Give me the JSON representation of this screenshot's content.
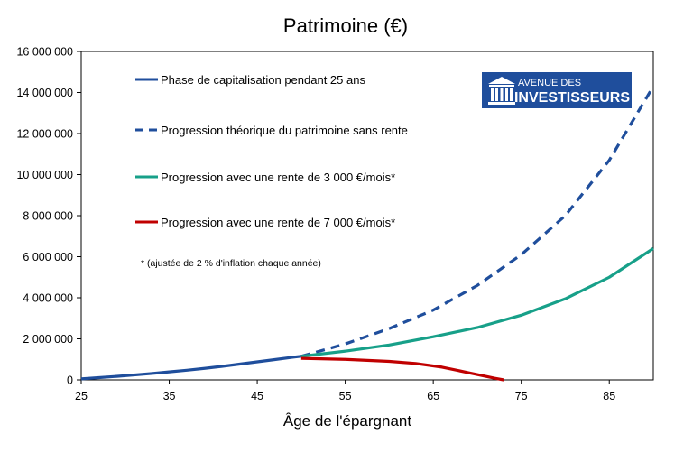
{
  "chart_data": {
    "type": "line",
    "title": "Patrimoine (€)",
    "xlabel": "Âge de l'épargnant",
    "ylabel": "",
    "xlim": [
      25,
      90
    ],
    "ylim": [
      0,
      16000000
    ],
    "x_ticks": [
      25,
      35,
      45,
      55,
      65,
      75,
      85
    ],
    "y_ticks": [
      0,
      2000000,
      4000000,
      6000000,
      8000000,
      10000000,
      12000000,
      14000000,
      16000000
    ],
    "y_tick_labels": [
      "0",
      "2 000 000",
      "4 000 000",
      "6 000 000",
      "8 000 000",
      "10 000 000",
      "12 000 000",
      "14 000 000",
      "16 000 000"
    ],
    "x_tick_labels": [
      "25",
      "35",
      "45",
      "55",
      "65",
      "75",
      "85"
    ],
    "grid": false,
    "legend_position": "top-left",
    "series": [
      {
        "name": "Phase de capitalisation pendant 25 ans",
        "color": "#1f4e9c",
        "style": "solid",
        "x": [
          25,
          27,
          29,
          31,
          33,
          35,
          37,
          39,
          41,
          43,
          45,
          47,
          49,
          50
        ],
        "values": [
          50000,
          110000,
          170000,
          240000,
          310000,
          390000,
          470000,
          560000,
          660000,
          770000,
          880000,
          990000,
          1100000,
          1150000
        ]
      },
      {
        "name": "Progression théorique du patrimoine sans rente",
        "color": "#1f4e9c",
        "style": "dashed",
        "x": [
          50,
          55,
          60,
          65,
          70,
          75,
          80,
          85,
          90
        ],
        "values": [
          1150000,
          1750000,
          2500000,
          3400000,
          4600000,
          6100000,
          8000000,
          10700000,
          14300000
        ]
      },
      {
        "name": "Progression avec une rente de 3 000 €/mois*",
        "color": "#17a089",
        "style": "solid",
        "x": [
          50,
          55,
          60,
          65,
          70,
          75,
          80,
          85,
          90
        ],
        "values": [
          1150000,
          1400000,
          1700000,
          2100000,
          2550000,
          3150000,
          3950000,
          5000000,
          6400000
        ]
      },
      {
        "name": "Progression avec une rente de 7 000 €/mois*",
        "color": "#c00000",
        "style": "solid",
        "x": [
          50,
          55,
          60,
          63,
          66,
          69,
          72,
          73
        ],
        "values": [
          1050000,
          1000000,
          900000,
          800000,
          620000,
          350000,
          80000,
          0
        ]
      }
    ],
    "annotations": [
      "* (ajustée de 2 % d'inflation chaque année)"
    ]
  },
  "logo": {
    "line1": "AVENUE DES",
    "line2": "INVESTISSEURS",
    "color": "#1f4e9c"
  }
}
